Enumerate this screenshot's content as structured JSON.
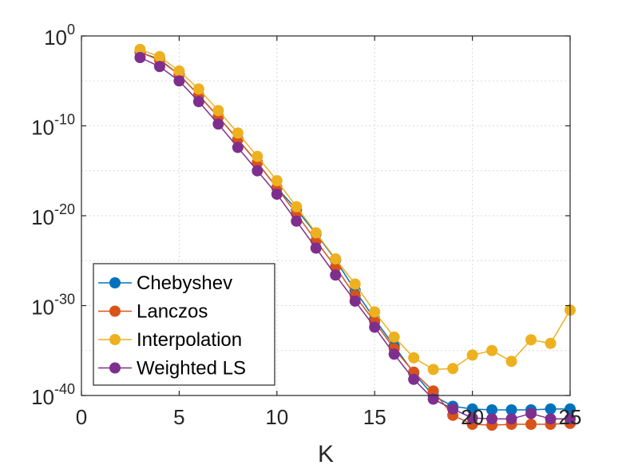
{
  "chart_data": {
    "type": "line",
    "title": "",
    "xlabel": "K",
    "ylabel": "",
    "xlim": [
      0,
      25
    ],
    "ylim_log10": [
      -40,
      0
    ],
    "y_scale": "log",
    "grid": true,
    "legend_location": "bottom-left",
    "x_ticks": [
      {
        "value": 0,
        "label": "0"
      },
      {
        "value": 5,
        "label": "5"
      },
      {
        "value": 10,
        "label": "10"
      },
      {
        "value": 15,
        "label": "15"
      },
      {
        "value": 20,
        "label": "20"
      },
      {
        "value": 25,
        "label": "25"
      }
    ],
    "y_ticks": [
      {
        "exp": 0,
        "base": "10",
        "power": "0"
      },
      {
        "exp": -10,
        "base": "10",
        "power": "-10"
      },
      {
        "exp": -20,
        "base": "10",
        "power": "-20"
      },
      {
        "exp": -30,
        "base": "10",
        "power": "-30"
      },
      {
        "exp": -40,
        "base": "10",
        "power": "-40"
      }
    ],
    "x": [
      3,
      4,
      5,
      6,
      7,
      8,
      9,
      10,
      11,
      12,
      13,
      14,
      15,
      16,
      17,
      18,
      19,
      20,
      21,
      22,
      23,
      24,
      25
    ],
    "series": [
      {
        "name": "Chebyshev",
        "color": "#0072BD",
        "log10_values": [
          -1.8,
          -2.6,
          -4.3,
          -6.6,
          -9.0,
          -11.5,
          -14.1,
          -16.9,
          -19.3,
          -22.0,
          -24.9,
          -28.3,
          -31.5,
          -34.5,
          -37.5,
          -40.0,
          -41.2,
          -41.5,
          -41.6,
          -41.6,
          -41.6,
          -41.5,
          -41.5
        ]
      },
      {
        "name": "Lanczos",
        "color": "#D95319",
        "log10_values": [
          -1.8,
          -2.7,
          -4.3,
          -6.6,
          -9.0,
          -11.5,
          -14.1,
          -16.9,
          -19.8,
          -22.8,
          -25.7,
          -28.9,
          -31.8,
          -34.8,
          -37.4,
          -39.5,
          -42.2,
          -43.2,
          -43.3,
          -43.2,
          -43.2,
          -43.2,
          -43.1
        ]
      },
      {
        "name": "Interpolation",
        "color": "#EDB120",
        "log10_values": [
          -1.5,
          -2.3,
          -3.9,
          -5.9,
          -8.3,
          -10.8,
          -13.4,
          -16.1,
          -19.0,
          -21.9,
          -24.8,
          -27.6,
          -30.7,
          -33.5,
          -35.8,
          -37.1,
          -37.0,
          -35.5,
          -35.0,
          -36.2,
          -33.8,
          -34.2,
          -30.5
        ]
      },
      {
        "name": "Weighted LS",
        "color": "#7E2F8E",
        "log10_values": [
          -2.4,
          -3.4,
          -5.0,
          -7.3,
          -9.8,
          -12.4,
          -15.0,
          -17.6,
          -20.6,
          -23.6,
          -26.6,
          -29.5,
          -32.4,
          -35.4,
          -38.2,
          -40.4,
          -41.5,
          -42.5,
          -42.6,
          -42.6,
          -42.0,
          -42.6,
          -42.6
        ]
      }
    ]
  }
}
